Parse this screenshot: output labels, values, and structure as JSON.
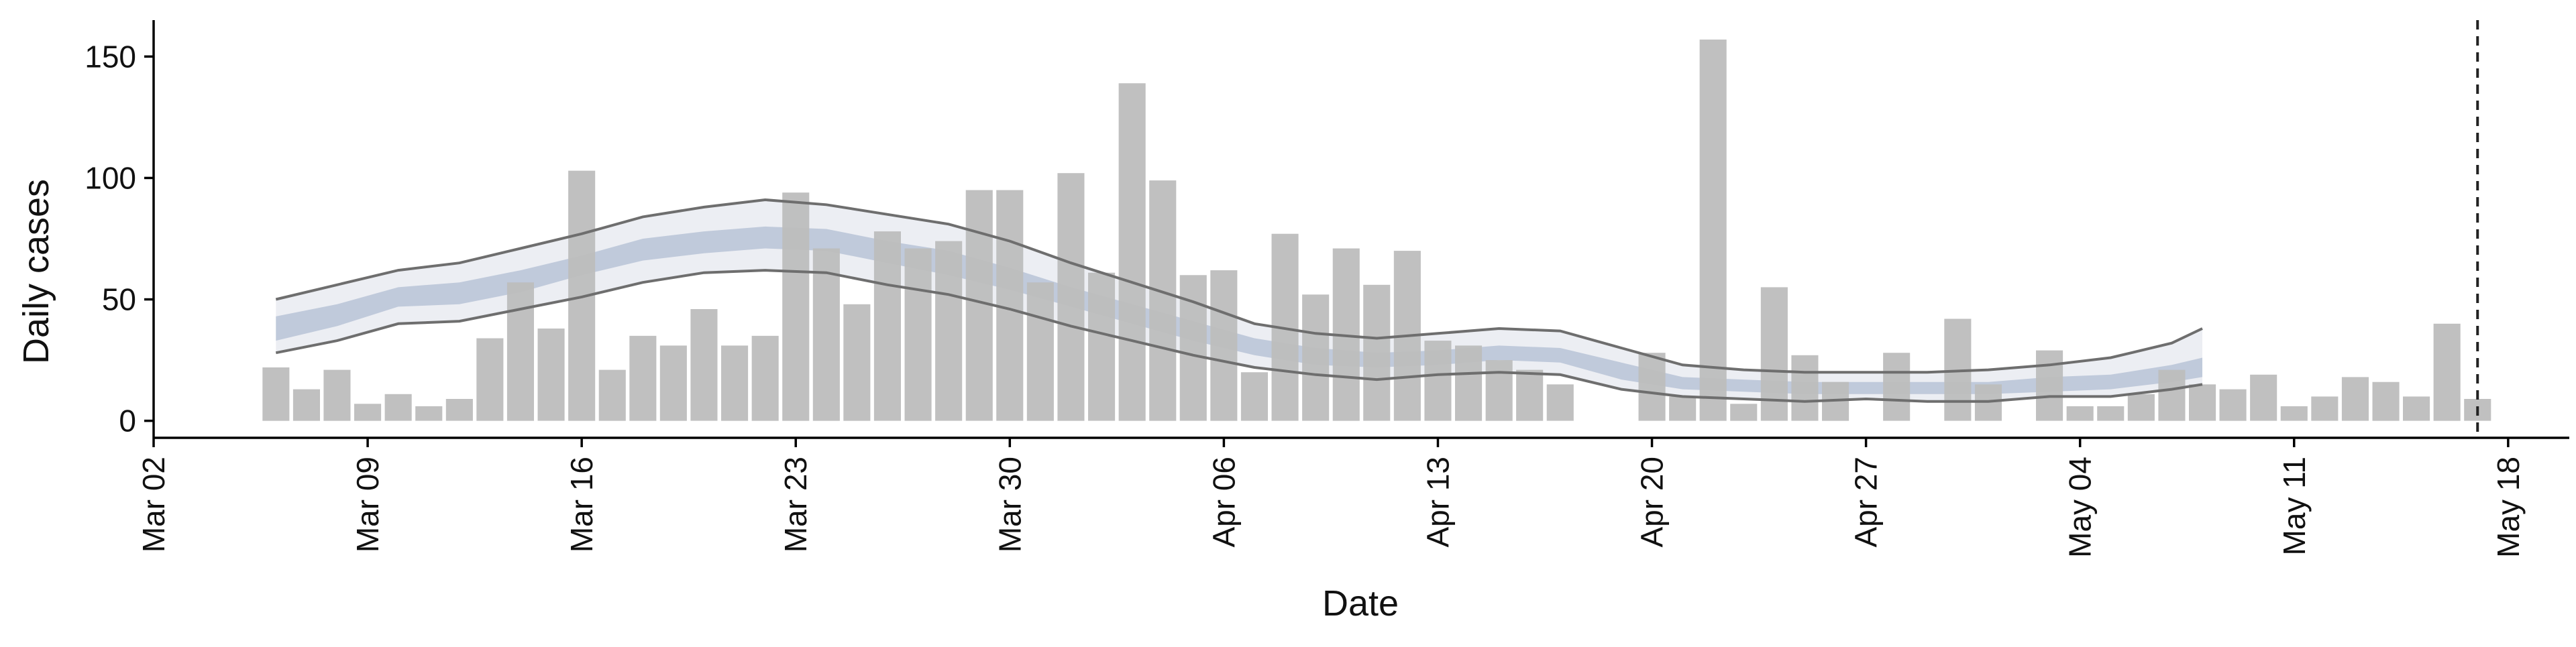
{
  "chart_data": {
    "type": "bar",
    "xlabel": "Date",
    "ylabel": "Daily cases",
    "x_range": [
      "2020-03-02",
      "2020-05-20"
    ],
    "ylim": [
      -7,
      165
    ],
    "x_ticks": [
      "2020-03-02",
      "2020-03-09",
      "2020-03-16",
      "2020-03-23",
      "2020-03-30",
      "2020-04-06",
      "2020-04-13",
      "2020-04-20",
      "2020-04-27",
      "2020-05-04",
      "2020-05-11",
      "2020-05-18"
    ],
    "x_tick_labels": [
      "Mar 02",
      "Mar 09",
      "Mar 16",
      "Mar 23",
      "Mar 30",
      "Apr 06",
      "Apr 13",
      "Apr 20",
      "Apr 27",
      "May 04",
      "May 11",
      "May 18"
    ],
    "y_ticks": [
      0,
      50,
      100,
      150
    ],
    "y_tick_labels": [
      "0",
      "50",
      "100",
      "150"
    ],
    "grid": false,
    "legend": "none",
    "colors": {
      "bars": "#bdbdbd",
      "outer_band": "#e9ebf1",
      "inner_band": "#b2bed3",
      "band_edge": "#6e6e6e",
      "axis": "#000000",
      "vline": "#222222"
    },
    "vertical_line": {
      "date": "2020-05-17",
      "style": "dashed"
    },
    "daily_cases": [
      {
        "date": "2020-03-06",
        "value": 22
      },
      {
        "date": "2020-03-07",
        "value": 13
      },
      {
        "date": "2020-03-08",
        "value": 21
      },
      {
        "date": "2020-03-09",
        "value": 7
      },
      {
        "date": "2020-03-10",
        "value": 11
      },
      {
        "date": "2020-03-11",
        "value": 6
      },
      {
        "date": "2020-03-12",
        "value": 9
      },
      {
        "date": "2020-03-13",
        "value": 34
      },
      {
        "date": "2020-03-14",
        "value": 57
      },
      {
        "date": "2020-03-15",
        "value": 38
      },
      {
        "date": "2020-03-16",
        "value": 103
      },
      {
        "date": "2020-03-17",
        "value": 21
      },
      {
        "date": "2020-03-18",
        "value": 35
      },
      {
        "date": "2020-03-19",
        "value": 31
      },
      {
        "date": "2020-03-20",
        "value": 46
      },
      {
        "date": "2020-03-21",
        "value": 31
      },
      {
        "date": "2020-03-22",
        "value": 35
      },
      {
        "date": "2020-03-23",
        "value": 94
      },
      {
        "date": "2020-03-24",
        "value": 71
      },
      {
        "date": "2020-03-25",
        "value": 48
      },
      {
        "date": "2020-03-26",
        "value": 78
      },
      {
        "date": "2020-03-27",
        "value": 71
      },
      {
        "date": "2020-03-28",
        "value": 74
      },
      {
        "date": "2020-03-29",
        "value": 95
      },
      {
        "date": "2020-03-30",
        "value": 95
      },
      {
        "date": "2020-03-31",
        "value": 57
      },
      {
        "date": "2020-04-01",
        "value": 102
      },
      {
        "date": "2020-04-02",
        "value": 61
      },
      {
        "date": "2020-04-03",
        "value": 139
      },
      {
        "date": "2020-04-04",
        "value": 99
      },
      {
        "date": "2020-04-05",
        "value": 60
      },
      {
        "date": "2020-04-06",
        "value": 62
      },
      {
        "date": "2020-04-07",
        "value": 20
      },
      {
        "date": "2020-04-08",
        "value": 77
      },
      {
        "date": "2020-04-09",
        "value": 52
      },
      {
        "date": "2020-04-10",
        "value": 71
      },
      {
        "date": "2020-04-11",
        "value": 56
      },
      {
        "date": "2020-04-12",
        "value": 70
      },
      {
        "date": "2020-04-13",
        "value": 33
      },
      {
        "date": "2020-04-14",
        "value": 31
      },
      {
        "date": "2020-04-15",
        "value": 25
      },
      {
        "date": "2020-04-16",
        "value": 21
      },
      {
        "date": "2020-04-17",
        "value": 15
      },
      {
        "date": "2020-04-20",
        "value": 28
      },
      {
        "date": "2020-04-21",
        "value": 10
      },
      {
        "date": "2020-04-22",
        "value": 157
      },
      {
        "date": "2020-04-23",
        "value": 7
      },
      {
        "date": "2020-04-24",
        "value": 55
      },
      {
        "date": "2020-04-25",
        "value": 27
      },
      {
        "date": "2020-04-26",
        "value": 16
      },
      {
        "date": "2020-04-28",
        "value": 28
      },
      {
        "date": "2020-04-30",
        "value": 42
      },
      {
        "date": "2020-05-01",
        "value": 15
      },
      {
        "date": "2020-05-03",
        "value": 29
      },
      {
        "date": "2020-05-04",
        "value": 6
      },
      {
        "date": "2020-05-05",
        "value": 6
      },
      {
        "date": "2020-05-06",
        "value": 11
      },
      {
        "date": "2020-05-07",
        "value": 21
      },
      {
        "date": "2020-05-08",
        "value": 15
      },
      {
        "date": "2020-05-09",
        "value": 13
      },
      {
        "date": "2020-05-10",
        "value": 19
      },
      {
        "date": "2020-05-11",
        "value": 6
      },
      {
        "date": "2020-05-12",
        "value": 10
      },
      {
        "date": "2020-05-13",
        "value": 18
      },
      {
        "date": "2020-05-14",
        "value": 16
      },
      {
        "date": "2020-05-15",
        "value": 10
      },
      {
        "date": "2020-05-16",
        "value": 40
      },
      {
        "date": "2020-05-17",
        "value": 9
      }
    ],
    "estimate_bands": [
      {
        "date": "2020-03-06",
        "outer_low": 28,
        "outer_high": 50,
        "inner_low": 33,
        "inner_high": 43
      },
      {
        "date": "2020-03-08",
        "outer_low": 33,
        "outer_high": 56,
        "inner_low": 39,
        "inner_high": 48
      },
      {
        "date": "2020-03-10",
        "outer_low": 40,
        "outer_high": 62,
        "inner_low": 47,
        "inner_high": 55
      },
      {
        "date": "2020-03-12",
        "outer_low": 41,
        "outer_high": 65,
        "inner_low": 48,
        "inner_high": 57
      },
      {
        "date": "2020-03-14",
        "outer_low": 46,
        "outer_high": 71,
        "inner_low": 53,
        "inner_high": 62
      },
      {
        "date": "2020-03-16",
        "outer_low": 51,
        "outer_high": 77,
        "inner_low": 60,
        "inner_high": 68
      },
      {
        "date": "2020-03-18",
        "outer_low": 57,
        "outer_high": 84,
        "inner_low": 66,
        "inner_high": 75
      },
      {
        "date": "2020-03-20",
        "outer_low": 61,
        "outer_high": 88,
        "inner_low": 69,
        "inner_high": 78
      },
      {
        "date": "2020-03-22",
        "outer_low": 62,
        "outer_high": 91,
        "inner_low": 71,
        "inner_high": 80
      },
      {
        "date": "2020-03-24",
        "outer_low": 61,
        "outer_high": 89,
        "inner_low": 70,
        "inner_high": 79
      },
      {
        "date": "2020-03-26",
        "outer_low": 56,
        "outer_high": 85,
        "inner_low": 65,
        "inner_high": 74
      },
      {
        "date": "2020-03-28",
        "outer_low": 52,
        "outer_high": 81,
        "inner_low": 60,
        "inner_high": 70
      },
      {
        "date": "2020-03-30",
        "outer_low": 46,
        "outer_high": 74,
        "inner_low": 54,
        "inner_high": 63
      },
      {
        "date": "2020-04-01",
        "outer_low": 39,
        "outer_high": 65,
        "inner_low": 47,
        "inner_high": 55
      },
      {
        "date": "2020-04-03",
        "outer_low": 33,
        "outer_high": 57,
        "inner_low": 40,
        "inner_high": 48
      },
      {
        "date": "2020-04-05",
        "outer_low": 27,
        "outer_high": 49,
        "inner_low": 33,
        "inner_high": 41
      },
      {
        "date": "2020-04-07",
        "outer_low": 22,
        "outer_high": 40,
        "inner_low": 27,
        "inner_high": 34
      },
      {
        "date": "2020-04-09",
        "outer_low": 19,
        "outer_high": 36,
        "inner_low": 23,
        "inner_high": 30
      },
      {
        "date": "2020-04-11",
        "outer_low": 17,
        "outer_high": 34,
        "inner_low": 22,
        "inner_high": 28
      },
      {
        "date": "2020-04-13",
        "outer_low": 19,
        "outer_high": 36,
        "inner_low": 23,
        "inner_high": 29
      },
      {
        "date": "2020-04-15",
        "outer_low": 20,
        "outer_high": 38,
        "inner_low": 25,
        "inner_high": 31
      },
      {
        "date": "2020-04-17",
        "outer_low": 19,
        "outer_high": 37,
        "inner_low": 24,
        "inner_high": 30
      },
      {
        "date": "2020-04-19",
        "outer_low": 13,
        "outer_high": 30,
        "inner_low": 17,
        "inner_high": 24
      },
      {
        "date": "2020-04-21",
        "outer_low": 10,
        "outer_high": 23,
        "inner_low": 13,
        "inner_high": 18
      },
      {
        "date": "2020-04-23",
        "outer_low": 9,
        "outer_high": 21,
        "inner_low": 12,
        "inner_high": 17
      },
      {
        "date": "2020-04-25",
        "outer_low": 8,
        "outer_high": 20,
        "inner_low": 11,
        "inner_high": 16
      },
      {
        "date": "2020-04-27",
        "outer_low": 9,
        "outer_high": 20,
        "inner_low": 11,
        "inner_high": 16
      },
      {
        "date": "2020-04-29",
        "outer_low": 8,
        "outer_high": 20,
        "inner_low": 11,
        "inner_high": 16
      },
      {
        "date": "2020-05-01",
        "outer_low": 8,
        "outer_high": 21,
        "inner_low": 11,
        "inner_high": 16
      },
      {
        "date": "2020-05-03",
        "outer_low": 10,
        "outer_high": 23,
        "inner_low": 12,
        "inner_high": 18
      },
      {
        "date": "2020-05-05",
        "outer_low": 10,
        "outer_high": 26,
        "inner_low": 13,
        "inner_high": 19
      },
      {
        "date": "2020-05-07",
        "outer_low": 13,
        "outer_high": 32,
        "inner_low": 16,
        "inner_high": 23
      },
      {
        "date": "2020-05-08",
        "outer_low": 15,
        "outer_high": 38,
        "inner_low": 18,
        "inner_high": 26
      }
    ]
  }
}
